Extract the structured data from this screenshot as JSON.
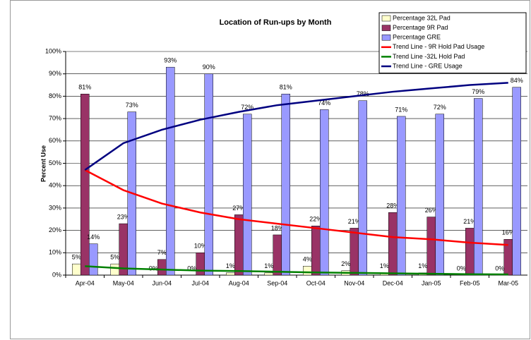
{
  "chart_data": {
    "type": "bar",
    "title": "Location of Run-ups by Month",
    "y_label": "Percent Use",
    "categories": [
      "Apr-04",
      "May-04",
      "Jun-04",
      "Jul-04",
      "Aug-04",
      "Sep-04",
      "Oct-04",
      "Nov-04",
      "Dec-04",
      "Jan-05",
      "Feb-05",
      "Mar-05"
    ],
    "series": [
      {
        "name": "Percentage 32L Pad",
        "color": "#ffffcc",
        "values": [
          5,
          5,
          0,
          0,
          1,
          1,
          4,
          2,
          1,
          1,
          0,
          0
        ],
        "value_labels": [
          "5%",
          "5%",
          "0%",
          "0%",
          "1%",
          "1%",
          "4%",
          "2%",
          "1%",
          "1%",
          "0%",
          "0%"
        ]
      },
      {
        "name": "Percentage 9R Pad",
        "color": "#993366",
        "values": [
          81,
          23,
          7,
          10,
          27,
          18,
          22,
          21,
          28,
          26,
          21,
          16
        ],
        "value_labels": [
          "81%",
          "23%",
          "7%",
          "10%",
          "27%",
          "18%",
          "22%",
          "21%",
          "28%",
          "26%",
          "21%",
          "16%"
        ]
      },
      {
        "name": "Percentage GRE",
        "color": "#9999ff",
        "values": [
          14,
          73,
          93,
          90,
          72,
          81,
          74,
          78,
          71,
          72,
          79,
          84
        ],
        "value_labels": [
          "14%",
          "73%",
          "93%",
          "90%",
          "72%",
          "81%",
          "74%",
          "78%",
          "71%",
          "72%",
          "79%",
          "84%"
        ]
      }
    ],
    "trend_series": [
      {
        "name": "Trend Line - 9R Hold Pad Usage",
        "color": "#ff0000",
        "values": [
          47,
          38,
          32,
          28,
          25,
          23,
          21,
          19,
          17,
          16,
          14.5,
          13.5
        ]
      },
      {
        "name": "Trend Line -32L Hold Pad",
        "color": "#008000",
        "values": [
          4,
          3,
          2.5,
          2,
          1.8,
          1.5,
          1.2,
          1,
          0.8,
          0.6,
          0.4,
          0.3
        ]
      },
      {
        "name": "Trend Line - GRE Usage",
        "color": "#000080",
        "values": [
          47,
          59,
          65,
          69.5,
          73,
          76,
          78,
          80,
          82,
          83.5,
          85,
          86
        ]
      }
    ],
    "ylim": [
      0,
      100
    ],
    "yticks": [
      {
        "value": 0,
        "label": "0%"
      },
      {
        "value": 10,
        "label": "10%"
      },
      {
        "value": 20,
        "label": "20%"
      },
      {
        "value": 30,
        "label": "30%"
      },
      {
        "value": 40,
        "label": "40%"
      },
      {
        "value": 50,
        "label": "50%"
      },
      {
        "value": 60,
        "label": "60%"
      },
      {
        "value": 70,
        "label": "70%"
      },
      {
        "value": 80,
        "label": "80%"
      },
      {
        "value": 90,
        "label": "90%"
      },
      {
        "value": 100,
        "label": "100%"
      }
    ],
    "grid": true,
    "legend": "top-right"
  }
}
